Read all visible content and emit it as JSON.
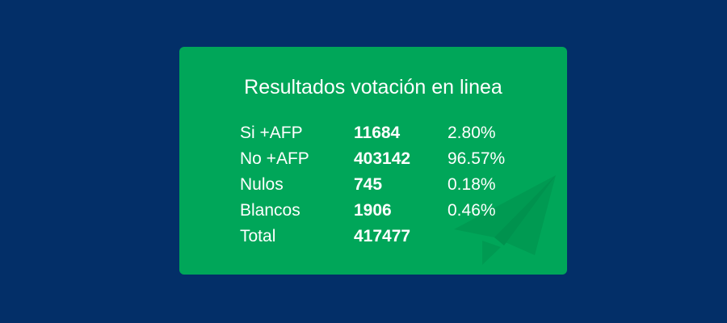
{
  "title": "Resultados votación en linea",
  "table": {
    "rows": [
      {
        "label": "Si +AFP",
        "votes": 11684,
        "percent": "2.80%"
      },
      {
        "label": "No +AFP",
        "votes": 403142,
        "percent": "96.57%"
      },
      {
        "label": "Nulos",
        "votes": 745,
        "percent": "0.18%"
      },
      {
        "label": "Blancos",
        "votes": 1906,
        "percent": "0.46%"
      },
      {
        "label": "Total",
        "votes": 417477
      }
    ]
  }
}
